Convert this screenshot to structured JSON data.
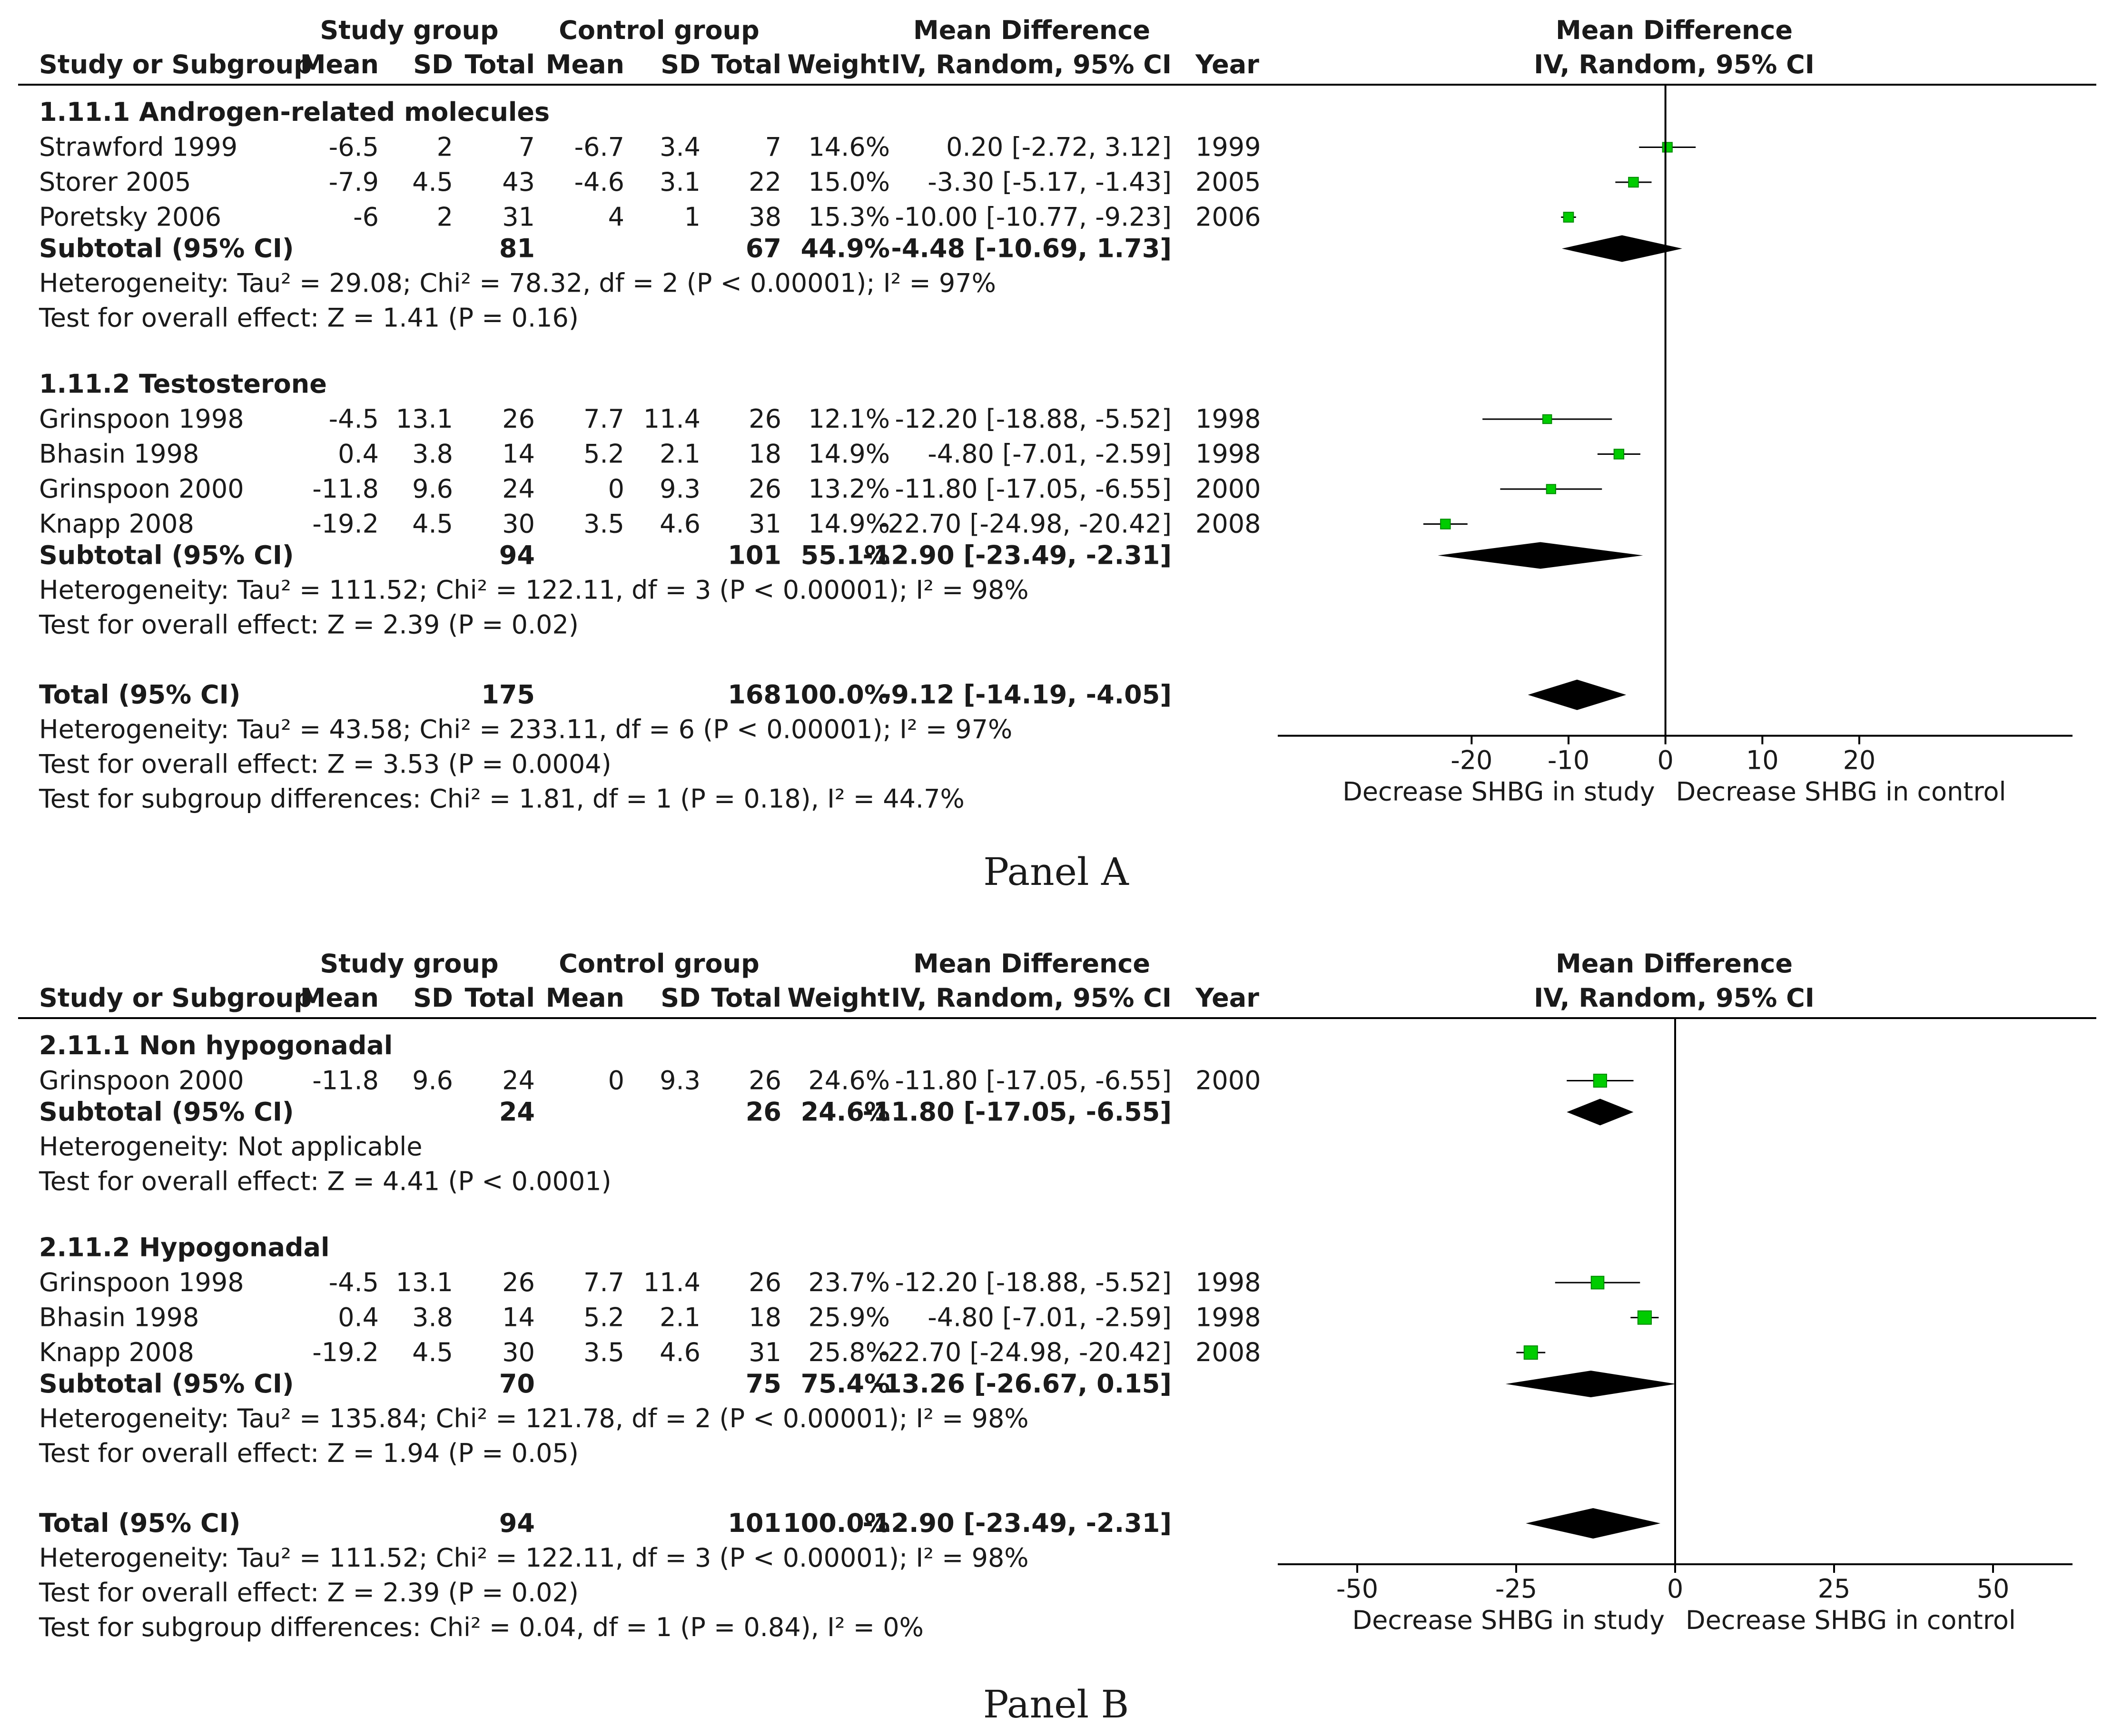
{
  "chart_data": [
    {
      "type": "forest",
      "panel_label": "Panel A",
      "headers": {
        "study_group": "Study group",
        "control_group": "Control group",
        "md_title": "Mean Difference",
        "md_method": "IV, Random, 95% CI",
        "plot_title": "Mean Difference",
        "plot_method": "IV, Random, 95% CI",
        "study": "Study or Subgroup",
        "mean": "Mean",
        "sd": "SD",
        "total": "Total",
        "weight": "Weight",
        "year": "Year"
      },
      "axis": {
        "min": -40,
        "max": 42,
        "ticks": [
          "-20",
          "-10",
          "0",
          "10",
          "20"
        ],
        "tick_values": [
          -20,
          -10,
          0,
          10,
          20
        ],
        "left_label": "Decrease SHBG in study",
        "right_label": "Decrease SHBG in control"
      },
      "rows": [
        {
          "kind": "heading",
          "label": "1.11.1 Androgen-related molecules"
        },
        {
          "kind": "study",
          "label": "Strawford 1999",
          "m1": "-6.5",
          "sd1": "2",
          "n1": "7",
          "m2": "-6.7",
          "sd2": "3.4",
          "n2": "7",
          "w": "14.6%",
          "ci": "0.20 [-2.72, 3.12]",
          "year": "1999",
          "est": 0.2,
          "lo": -2.72,
          "hi": 3.12
        },
        {
          "kind": "study",
          "label": "Storer 2005",
          "m1": "-7.9",
          "sd1": "4.5",
          "n1": "43",
          "m2": "-4.6",
          "sd2": "3.1",
          "n2": "22",
          "w": "15.0%",
          "ci": "-3.30 [-5.17, -1.43]",
          "year": "2005",
          "est": -3.3,
          "lo": -5.17,
          "hi": -1.43
        },
        {
          "kind": "study",
          "label": "Poretsky 2006",
          "m1": "-6",
          "sd1": "2",
          "n1": "31",
          "m2": "4",
          "sd2": "1",
          "n2": "38",
          "w": "15.3%",
          "ci": "-10.00 [-10.77, -9.23]",
          "year": "2006",
          "est": -10.0,
          "lo": -10.77,
          "hi": -9.23
        },
        {
          "kind": "subtotal",
          "label": "Subtotal (95% CI)",
          "n1": "81",
          "n2": "67",
          "w": "44.9%",
          "ci": "-4.48 [-10.69, 1.73]",
          "est": -4.48,
          "lo": -10.69,
          "hi": 1.73
        },
        {
          "kind": "note",
          "text": "Heterogeneity: Tau² = 29.08; Chi² = 78.32, df = 2 (P < 0.00001); I² = 97%"
        },
        {
          "kind": "note",
          "text": "Test for overall effect: Z = 1.41 (P = 0.16)"
        },
        {
          "kind": "blank"
        },
        {
          "kind": "heading",
          "label": "1.11.2 Testosterone"
        },
        {
          "kind": "study",
          "label": "Grinspoon 1998",
          "m1": "-4.5",
          "sd1": "13.1",
          "n1": "26",
          "m2": "7.7",
          "sd2": "11.4",
          "n2": "26",
          "w": "12.1%",
          "ci": "-12.20 [-18.88, -5.52]",
          "year": "1998",
          "est": -12.2,
          "lo": -18.88,
          "hi": -5.52
        },
        {
          "kind": "study",
          "label": "Bhasin 1998",
          "m1": "0.4",
          "sd1": "3.8",
          "n1": "14",
          "m2": "5.2",
          "sd2": "2.1",
          "n2": "18",
          "w": "14.9%",
          "ci": "-4.80 [-7.01, -2.59]",
          "year": "1998",
          "est": -4.8,
          "lo": -7.01,
          "hi": -2.59
        },
        {
          "kind": "study",
          "label": "Grinspoon 2000",
          "m1": "-11.8",
          "sd1": "9.6",
          "n1": "24",
          "m2": "0",
          "sd2": "9.3",
          "n2": "26",
          "w": "13.2%",
          "ci": "-11.80 [-17.05, -6.55]",
          "year": "2000",
          "est": -11.8,
          "lo": -17.05,
          "hi": -6.55
        },
        {
          "kind": "study",
          "label": "Knapp 2008",
          "m1": "-19.2",
          "sd1": "4.5",
          "n1": "30",
          "m2": "3.5",
          "sd2": "4.6",
          "n2": "31",
          "w": "14.9%",
          "ci": "-22.70 [-24.98, -20.42]",
          "year": "2008",
          "est": -22.7,
          "lo": -24.98,
          "hi": -20.42
        },
        {
          "kind": "subtotal",
          "label": "Subtotal (95% CI)",
          "n1": "94",
          "n2": "101",
          "w": "55.1%",
          "ci": "-12.90 [-23.49, -2.31]",
          "est": -12.9,
          "lo": -23.49,
          "hi": -2.31
        },
        {
          "kind": "note",
          "text": "Heterogeneity: Tau² = 111.52; Chi² = 122.11, df = 3 (P < 0.00001); I² = 98%"
        },
        {
          "kind": "note",
          "text": "Test for overall effect: Z = 2.39 (P = 0.02)"
        },
        {
          "kind": "blank"
        },
        {
          "kind": "total",
          "label": "Total (95% CI)",
          "n1": "175",
          "n2": "168",
          "w": "100.0%",
          "ci": "-9.12 [-14.19, -4.05]",
          "est": -9.12,
          "lo": -14.19,
          "hi": -4.05
        },
        {
          "kind": "note",
          "text": "Heterogeneity: Tau² = 43.58; Chi² = 233.11, df = 6 (P < 0.00001); I² = 97%"
        },
        {
          "kind": "note",
          "text": "Test for overall effect: Z = 3.53 (P = 0.0004)"
        },
        {
          "kind": "note",
          "text": "Test for subgroup differences: Chi² = 1.81, df = 1 (P = 0.18), I² = 44.7%"
        }
      ]
    },
    {
      "type": "forest",
      "panel_label": "Panel B",
      "headers": {
        "study_group": "Study group",
        "control_group": "Control group",
        "md_title": "Mean Difference",
        "md_method": "IV, Random, 95% CI",
        "plot_title": "Mean Difference",
        "plot_method": "IV, Random, 95% CI",
        "study": "Study or Subgroup",
        "mean": "Mean",
        "sd": "SD",
        "total": "Total",
        "weight": "Weight",
        "year": "Year"
      },
      "axis": {
        "min": -62.5,
        "max": 62.5,
        "ticks": [
          "-50",
          "-25",
          "0",
          "25",
          "50"
        ],
        "tick_values": [
          -50,
          -25,
          0,
          25,
          50
        ],
        "left_label": "Decrease SHBG in study",
        "right_label": "Decrease SHBG in control"
      },
      "rows": [
        {
          "kind": "heading",
          "label": "2.11.1 Non hypogonadal"
        },
        {
          "kind": "study",
          "label": "Grinspoon 2000",
          "m1": "-11.8",
          "sd1": "9.6",
          "n1": "24",
          "m2": "0",
          "sd2": "9.3",
          "n2": "26",
          "w": "24.6%",
          "ci": "-11.80 [-17.05, -6.55]",
          "year": "2000",
          "est": -11.8,
          "lo": -17.05,
          "hi": -6.55
        },
        {
          "kind": "subtotal",
          "label": "Subtotal (95% CI)",
          "n1": "24",
          "n2": "26",
          "w": "24.6%",
          "ci": "-11.80 [-17.05, -6.55]",
          "est": -11.8,
          "lo": -17.05,
          "hi": -6.55
        },
        {
          "kind": "note",
          "text": "Heterogeneity: Not applicable"
        },
        {
          "kind": "note",
          "text": "Test for overall effect: Z = 4.41 (P < 0.0001)"
        },
        {
          "kind": "blank"
        },
        {
          "kind": "heading",
          "label": "2.11.2 Hypogonadal"
        },
        {
          "kind": "study",
          "label": "Grinspoon 1998",
          "m1": "-4.5",
          "sd1": "13.1",
          "n1": "26",
          "m2": "7.7",
          "sd2": "11.4",
          "n2": "26",
          "w": "23.7%",
          "ci": "-12.20 [-18.88, -5.52]",
          "year": "1998",
          "est": -12.2,
          "lo": -18.88,
          "hi": -5.52
        },
        {
          "kind": "study",
          "label": "Bhasin 1998",
          "m1": "0.4",
          "sd1": "3.8",
          "n1": "14",
          "m2": "5.2",
          "sd2": "2.1",
          "n2": "18",
          "w": "25.9%",
          "ci": "-4.80 [-7.01, -2.59]",
          "year": "1998",
          "est": -4.8,
          "lo": -7.01,
          "hi": -2.59
        },
        {
          "kind": "study",
          "label": "Knapp 2008",
          "m1": "-19.2",
          "sd1": "4.5",
          "n1": "30",
          "m2": "3.5",
          "sd2": "4.6",
          "n2": "31",
          "w": "25.8%",
          "ci": "-22.70 [-24.98, -20.42]",
          "year": "2008",
          "est": -22.7,
          "lo": -24.98,
          "hi": -20.42
        },
        {
          "kind": "subtotal",
          "label": "Subtotal (95% CI)",
          "n1": "70",
          "n2": "75",
          "w": "75.4%",
          "ci": "-13.26 [-26.67, 0.15]",
          "est": -13.26,
          "lo": -26.67,
          "hi": 0.15
        },
        {
          "kind": "note",
          "text": "Heterogeneity: Tau² = 135.84; Chi² = 121.78, df = 2 (P < 0.00001); I² = 98%"
        },
        {
          "kind": "note",
          "text": "Test for overall effect: Z = 1.94 (P = 0.05)"
        },
        {
          "kind": "blank"
        },
        {
          "kind": "total",
          "label": "Total (95% CI)",
          "n1": "94",
          "n2": "101",
          "w": "100.0%",
          "ci": "-12.90 [-23.49, -2.31]",
          "est": -12.9,
          "lo": -23.49,
          "hi": -2.31
        },
        {
          "kind": "note",
          "text": "Heterogeneity: Tau² = 111.52; Chi² = 122.11, df = 3 (P < 0.00001); I² = 98%"
        },
        {
          "kind": "note",
          "text": "Test for overall effect: Z = 2.39 (P = 0.02)"
        },
        {
          "kind": "note",
          "text": "Test for subgroup differences: Chi² = 0.04, df = 1 (P = 0.84), I² = 0%"
        }
      ]
    }
  ],
  "colors": {
    "text": "#1a1a1a",
    "study_marker": "#00cc00",
    "diamond": "#000000",
    "line": "#000000"
  }
}
